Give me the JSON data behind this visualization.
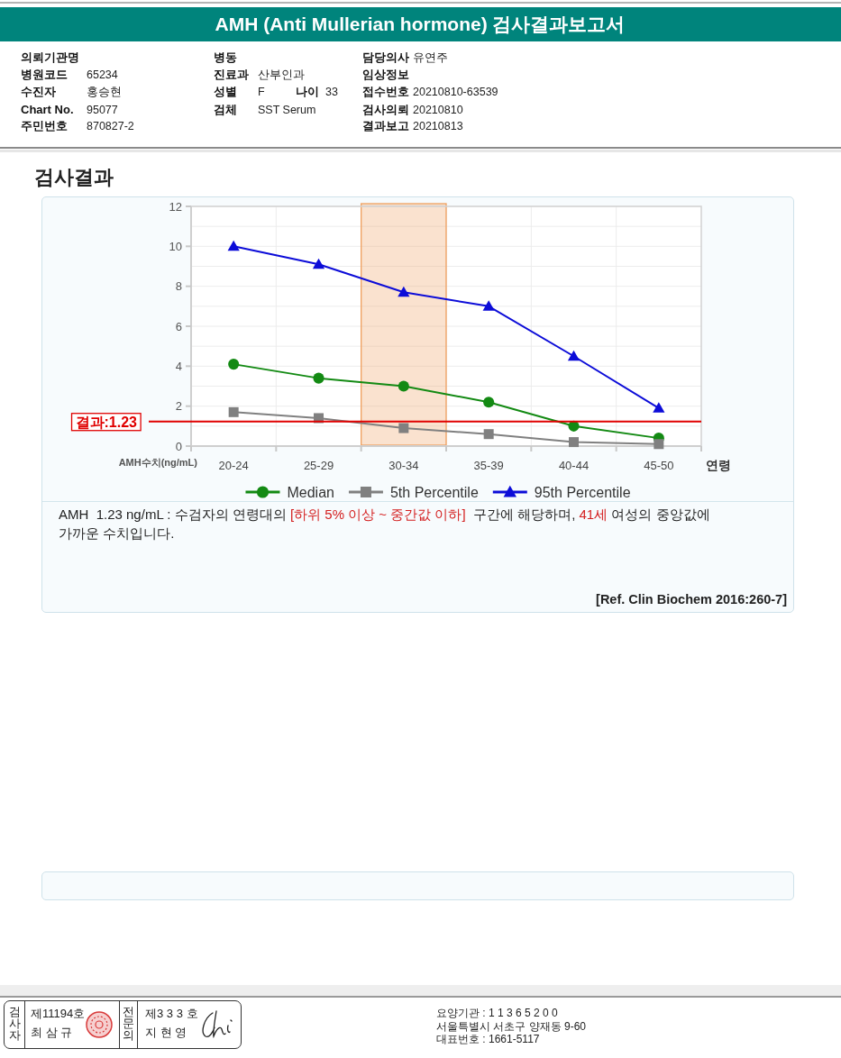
{
  "chart_data": {
    "type": "line",
    "title": "AMH (Anti Mullerian hormone) 검사결과보고서",
    "subtitle": "검사결과",
    "xlabel": "연령",
    "ylabel": "AMH수치(ng/mL)",
    "categories": [
      "20-24",
      "25-29",
      "30-34",
      "35-39",
      "40-44",
      "45-50"
    ],
    "series": [
      {
        "name": "Median",
        "color": "#138a13",
        "marker": "circle",
        "values": [
          4.1,
          3.4,
          3.0,
          2.2,
          1.0,
          0.4
        ]
      },
      {
        "name": "5th Percentile",
        "color": "#808080",
        "marker": "square",
        "values": [
          1.7,
          1.4,
          0.9,
          0.6,
          0.2,
          0.1
        ]
      },
      {
        "name": "95th Percentile",
        "color": "#0c0cd8",
        "marker": "triangle",
        "values": [
          10.0,
          9.1,
          7.7,
          7.0,
          4.5,
          1.9
        ]
      }
    ],
    "ylim": [
      0,
      12
    ],
    "yticks": [
      0,
      {
        "value": 1,
        "label": null
      },
      2,
      {
        "value": 3,
        "label": null
      },
      4,
      {
        "value": 5,
        "label": null
      },
      6,
      {
        "value": 7,
        "label": null
      },
      8,
      {
        "value": 9,
        "label": null
      },
      10,
      {
        "value": 11,
        "label": null
      },
      12
    ],
    "grid": true,
    "legend": "bottom",
    "ref_lines": [
      {
        "axis": "y",
        "value": 1.23,
        "label": "결과:1.23",
        "color": "#e00000"
      }
    ],
    "bands": [
      {
        "axis": "x",
        "from": "30-34",
        "to": "30-34",
        "color": "#f0a060"
      }
    ],
    "annotations": [
      "의뢰기관명",
      "병동",
      "담당의사",
      "유연주",
      "병원코드",
      "65234",
      "진료과",
      "산부인과",
      "임상정보",
      "수진자",
      "홍승현",
      "성별",
      "F",
      "나이",
      "33",
      "접수번호",
      "20210810-63539",
      "Chart No.",
      "95077",
      "검체",
      "SST Serum",
      "검사의뢰",
      "20210810",
      "주민번호",
      "870827-2",
      "결과보고",
      "20210813",
      "AMH  1.23 ng/mL : 수검자의 연령대의",
      "[하위 5% 이상 ~ 중간값 이하]",
      "구간에 해당하며,",
      "41세",
      "여성의 중앙값에",
      "가까운 수치입니다.",
      "[Ref. Clin Biochem 2016:260-7]",
      "검사자",
      "제11194호",
      "최 삼 규",
      "전문의",
      "제3 3 3 호",
      "지 현 영",
      "요양기관 : 1 1 3 6 5 2 0 0",
      "서울특별시 서초구 양재동 9-60",
      "대표번호 : 1661-5117"
    ]
  }
}
